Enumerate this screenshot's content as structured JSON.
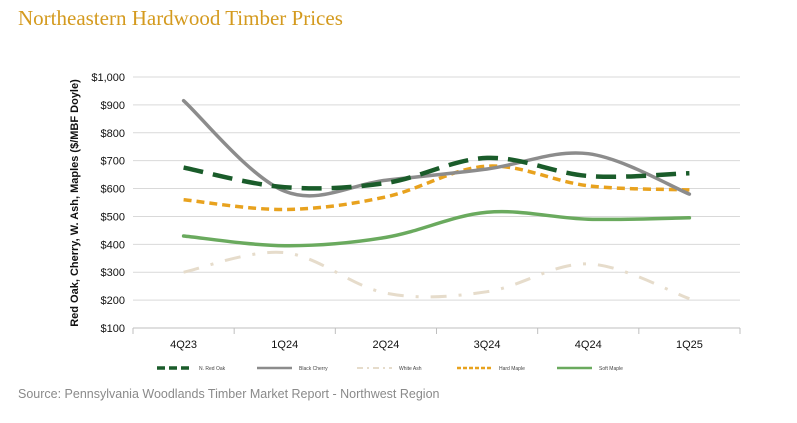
{
  "title": "Northeastern Hardwood Timber Prices",
  "source": "Source: Pennsylvania Woodlands Timber Market Report - Northwest Region",
  "chart_data": {
    "type": "line",
    "title": "Northeastern Hardwood Timber Prices",
    "xlabel": "",
    "ylabel": "Red Oak, Cherry, W. Ash, Maples ($/MBF Doyle)",
    "ylim": [
      100,
      1000
    ],
    "ytick_step": 100,
    "ytick_prefix": "$",
    "grid": "horizontal",
    "legend_position": "bottom",
    "categories": [
      "4Q23",
      "1Q24",
      "2Q24",
      "3Q24",
      "4Q24",
      "1Q25"
    ],
    "series": [
      {
        "name": "N. Red Oak",
        "values": [
          675,
          605,
          620,
          710,
          645,
          655
        ],
        "color": "#1a5c2a",
        "style": "longdash"
      },
      {
        "name": "Black Cherry",
        "values": [
          915,
          590,
          630,
          670,
          725,
          580
        ],
        "color": "#8c8c8c",
        "style": "solid"
      },
      {
        "name": "White Ash",
        "values": [
          300,
          370,
          225,
          230,
          330,
          205
        ],
        "color": "#e6dccb",
        "style": "dashdot"
      },
      {
        "name": "Hard Maple",
        "values": [
          560,
          525,
          570,
          680,
          610,
          595
        ],
        "color": "#e8a21e",
        "style": "shortdash"
      },
      {
        "name": "Soft Maple",
        "values": [
          430,
          395,
          425,
          515,
          490,
          495
        ],
        "color": "#6aaa5e",
        "style": "solid"
      }
    ]
  }
}
